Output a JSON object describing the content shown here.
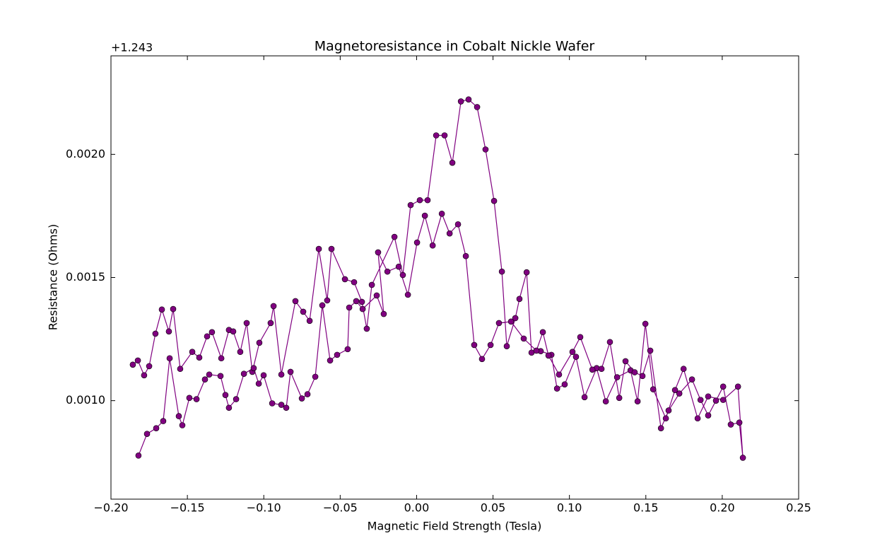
{
  "chart_data": {
    "type": "line",
    "title": "Magnetoresistance in Cobalt Nickle Wafer",
    "xlabel": "Magnetic Field Strength (Tesla)",
    "ylabel": "Resistance (Ohms)",
    "y_offset_label": "+1.243",
    "color": "#800080",
    "marker": true,
    "xlim": [
      -0.2,
      0.25
    ],
    "ylim": [
      0.0006,
      0.0024
    ],
    "xticks": [
      {
        "value": -0.2,
        "label": "−0.20"
      },
      {
        "value": -0.15,
        "label": "−0.15"
      },
      {
        "value": -0.1,
        "label": "−0.10"
      },
      {
        "value": -0.05,
        "label": "−0.05"
      },
      {
        "value": 0,
        "label": "0.00"
      },
      {
        "value": 0.05,
        "label": "0.05"
      },
      {
        "value": 0.1,
        "label": "0.10"
      },
      {
        "value": 0.15,
        "label": "0.15"
      },
      {
        "value": 0.2,
        "label": "0.20"
      },
      {
        "value": 0.25,
        "label": "0.25"
      }
    ],
    "yticks": [
      {
        "value": 0.001,
        "label": "0.0010"
      },
      {
        "value": 0.0015,
        "label": "0.0015"
      },
      {
        "value": 0.002,
        "label": "0.0020"
      }
    ],
    "x": [
      -0.1857,
      -0.1824,
      -0.1783,
      -0.175,
      -0.1709,
      -0.1667,
      -0.1621,
      -0.1593,
      -0.1547,
      -0.1468,
      -0.1422,
      -0.1371,
      -0.1339,
      -0.1278,
      -0.1228,
      -0.12,
      -0.1154,
      -0.1112,
      -0.1075,
      -0.1029,
      -0.0955,
      -0.0936,
      -0.0885,
      -0.0793,
      -0.0742,
      -0.07,
      -0.064,
      -0.0585,
      -0.0557,
      -0.0469,
      -0.0409,
      -0.0358,
      -0.0326,
      -0.0293,
      -0.0145,
      -0.009,
      -0.0039,
      0.0021,
      0.0072,
      0.0128,
      0.0183,
      0.0234,
      0.029,
      0.034,
      0.0396,
      0.0451,
      0.0507,
      0.0558,
      0.059,
      0.0646,
      0.0673,
      0.072,
      0.0752,
      0.0812,
      0.0882,
      0.0919,
      0.0969,
      0.1043,
      0.1099,
      0.1178,
      0.1238,
      0.1312,
      0.14,
      0.1446,
      0.1497,
      0.1548,
      0.1631,
      0.1691,
      0.1747,
      0.1839,
      0.1908,
      0.2006,
      0.2103,
      0.2135,
      0.2112,
      0.2056,
      0.2006,
      0.1959,
      0.1908,
      0.1858,
      0.1802,
      0.1719,
      0.1649,
      0.1599,
      0.1529,
      0.1478,
      0.1427,
      0.1367,
      0.1326,
      0.1265,
      0.121,
      0.115,
      0.1071,
      0.102,
      0.0932,
      0.0863,
      0.0826,
      0.0784,
      0.0701,
      0.0618,
      0.0539,
      0.0484,
      0.0428,
      0.0377,
      0.0322,
      0.0271,
      0.0216,
      0.0165,
      0.0105,
      0.0054,
      0.0003,
      -0.0057,
      -0.0117,
      -0.0191,
      -0.0252,
      -0.0215,
      -0.0261,
      -0.0353,
      -0.0395,
      -0.0441,
      -0.0451,
      -0.052,
      -0.0566,
      -0.0617,
      -0.0663,
      -0.0714,
      -0.0751,
      -0.0825,
      -0.0853,
      -0.0885,
      -0.0945,
      -0.1001,
      -0.1033,
      -0.1066,
      -0.113,
      -0.1181,
      -0.1228,
      -0.1251,
      -0.1283,
      -0.1357,
      -0.1385,
      -0.144,
      -0.1487,
      -0.1533,
      -0.1556,
      -0.1616,
      -0.1658,
      -0.1704,
      -0.1764,
      -0.182
    ],
    "values": [
      0.001146,
      0.001163,
      0.001103,
      0.00114,
      0.001272,
      0.00137,
      0.001281,
      0.001372,
      0.001129,
      0.001198,
      0.001175,
      0.001261,
      0.001278,
      0.001172,
      0.001287,
      0.001281,
      0.001198,
      0.001315,
      0.001117,
      0.001235,
      0.001315,
      0.001384,
      0.001106,
      0.001404,
      0.001361,
      0.001324,
      0.001616,
      0.001407,
      0.001616,
      0.001493,
      0.001481,
      0.001401,
      0.001292,
      0.00147,
      0.001665,
      0.00151,
      0.001794,
      0.001814,
      0.001814,
      0.002077,
      0.002077,
      0.001966,
      0.002215,
      0.002223,
      0.002192,
      0.00202,
      0.001811,
      0.001524,
      0.001221,
      0.001335,
      0.001413,
      0.001521,
      0.001195,
      0.001201,
      0.001186,
      0.001049,
      0.001066,
      0.001178,
      0.001014,
      0.001132,
      0.000997,
      0.001095,
      0.001123,
      0.000997,
      0.001312,
      0.001046,
      0.000928,
      0.001043,
      0.001129,
      0.000928,
      0.001017,
      0.001003,
      0.001057,
      0.000768,
      0.000911,
      0.000903,
      0.001057,
      0.001,
      0.00094,
      0.001003,
      0.001086,
      0.001029,
      0.00096,
      0.000888,
      0.001203,
      0.0011,
      0.001115,
      0.00116,
      0.001011,
      0.001238,
      0.001129,
      0.001126,
      0.001258,
      0.001198,
      0.001106,
      0.001183,
      0.001278,
      0.001203,
      0.001252,
      0.001321,
      0.001315,
      0.001226,
      0.001169,
      0.001226,
      0.001587,
      0.001716,
      0.001679,
      0.001759,
      0.00163,
      0.001751,
      0.001642,
      0.00143,
      0.001544,
      0.001524,
      0.001602,
      0.001352,
      0.001427,
      0.001372,
      0.001404,
      0.001378,
      0.001209,
      0.001186,
      0.001163,
      0.001387,
      0.001097,
      0.001026,
      0.001009,
      0.001117,
      0.000971,
      0.000983,
      0.000989,
      0.001103,
      0.001069,
      0.001132,
      0.001109,
      0.001006,
      0.000971,
      0.001023,
      0.0011,
      0.001106,
      0.001086,
      0.001006,
      0.001011,
      0.0009,
      0.000937,
      0.001172,
      0.000917,
      0.000888,
      0.000865,
      0.000777
    ]
  }
}
